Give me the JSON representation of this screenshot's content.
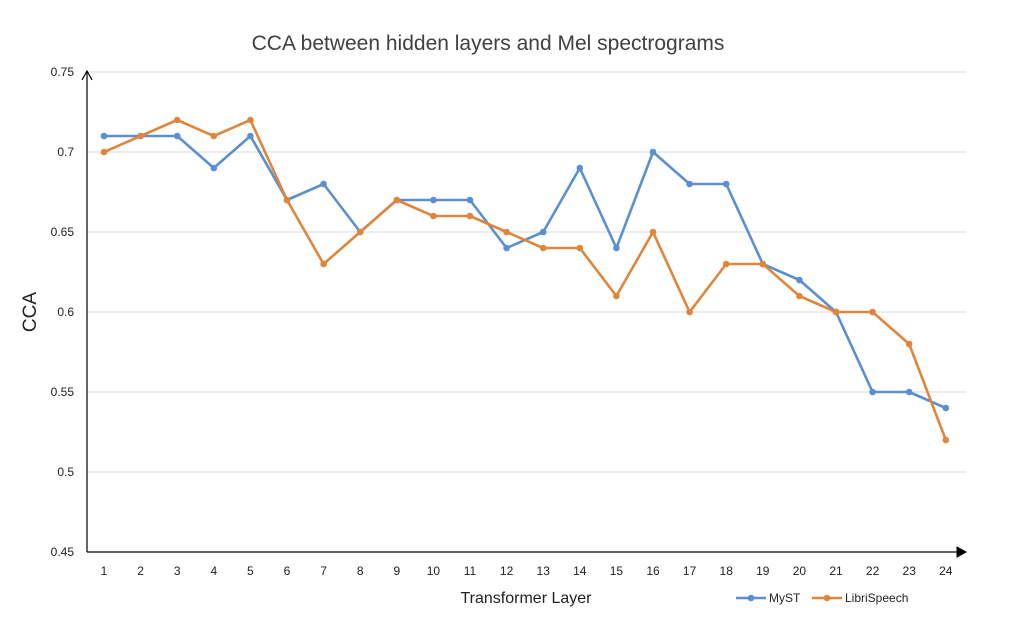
{
  "chart_data": {
    "type": "line",
    "title": "CCA between hidden layers and Mel spectrograms",
    "xlabel": "Transformer Layer",
    "ylabel": "CCA",
    "categories": [
      "1",
      "2",
      "3",
      "4",
      "5",
      "6",
      "7",
      "8",
      "9",
      "10",
      "11",
      "12",
      "13",
      "14",
      "15",
      "16",
      "17",
      "18",
      "19",
      "20",
      "21",
      "22",
      "23",
      "24"
    ],
    "ylim": [
      0.45,
      0.75
    ],
    "yticks": [
      "0.45",
      "0.5",
      "0.55",
      "0.6",
      "0.65",
      "0.7",
      "0.75"
    ],
    "grid": true,
    "legend_position": "bottom-right",
    "series": [
      {
        "name": "MyST",
        "color": "#5b8fce",
        "values": [
          0.71,
          0.71,
          0.71,
          0.69,
          0.71,
          0.67,
          0.68,
          0.65,
          0.67,
          0.67,
          0.67,
          0.64,
          0.65,
          0.69,
          0.64,
          0.7,
          0.68,
          0.68,
          0.63,
          0.62,
          0.6,
          0.55,
          0.55,
          0.54
        ]
      },
      {
        "name": "LibriSpeech",
        "color": "#e0853c",
        "values": [
          0.7,
          0.71,
          0.72,
          0.71,
          0.72,
          0.67,
          0.63,
          0.65,
          0.67,
          0.66,
          0.66,
          0.65,
          0.64,
          0.64,
          0.61,
          0.65,
          0.6,
          0.63,
          0.63,
          0.61,
          0.6,
          0.6,
          0.58,
          0.52
        ]
      }
    ]
  }
}
